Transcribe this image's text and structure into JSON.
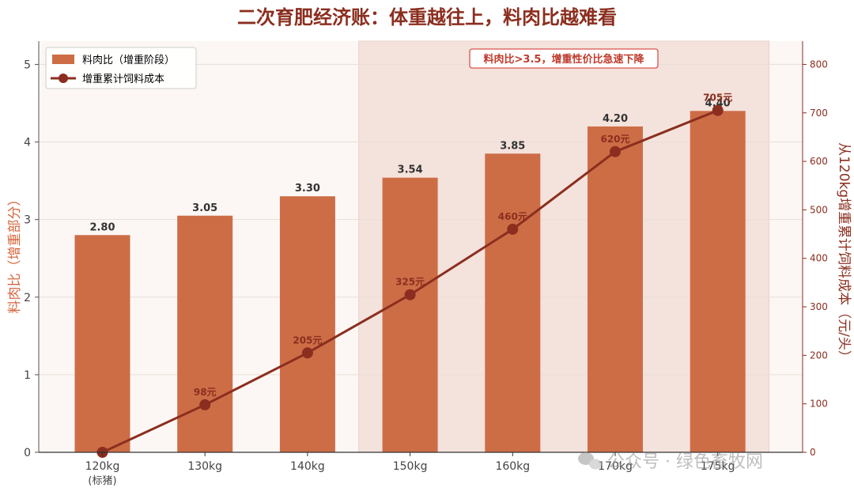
{
  "chart_data": {
    "type": "bar",
    "title": "二次育肥经济账：体重越往上，料肉比越难看",
    "categories": [
      "120kg",
      "130kg",
      "140kg",
      "150kg",
      "160kg",
      "170kg",
      "175kg"
    ],
    "category_sublabels": [
      "(标猪)",
      "",
      "",
      "",
      "",
      "",
      ""
    ],
    "ylabel_left": "料肉比（增重部分）",
    "ylabel_right": "从120kg增重累计饲料成本（元/头）",
    "ylim_left": [
      0,
      5.3
    ],
    "ylim_right": [
      0,
      848
    ],
    "yticks_left": [
      0,
      1,
      2,
      3,
      4,
      5
    ],
    "yticks_right": [
      0,
      100,
      200,
      300,
      400,
      500,
      600,
      700,
      800
    ],
    "series": [
      {
        "name": "料肉比（增重阶段）",
        "kind": "bar",
        "axis": "left",
        "values": [
          2.8,
          3.05,
          3.3,
          3.54,
          3.85,
          4.2,
          4.4
        ],
        "labels": [
          "2.80",
          "3.05",
          "3.30",
          "3.54",
          "3.85",
          "4.20",
          "4.40"
        ]
      },
      {
        "name": "增重累计饲料成本",
        "kind": "line",
        "axis": "right",
        "values": [
          0,
          98,
          205,
          325,
          460,
          620,
          705
        ],
        "labels": [
          "",
          "98元",
          "205元",
          "325元",
          "460元",
          "620元",
          "705元"
        ]
      }
    ],
    "highlight_region": {
      "from_category": 3,
      "to_category": 6
    },
    "annotation": "料肉比>3.5，增重性价比急速下降",
    "legend_position": "top-left",
    "grid": true
  },
  "colors": {
    "bar": "#CD6D46",
    "line": "#8B2E1F",
    "title": "#8B2E1F",
    "left_axis": "#D4673F",
    "right_axis": "#8B2E1F",
    "plot_bg": "#FCF7F4",
    "highlight_bg": "#F4E2DC",
    "annotation_border": "#D9534F",
    "annotation_text": "#C0392B"
  },
  "watermark": "公众号 · 绿色畜牧网"
}
